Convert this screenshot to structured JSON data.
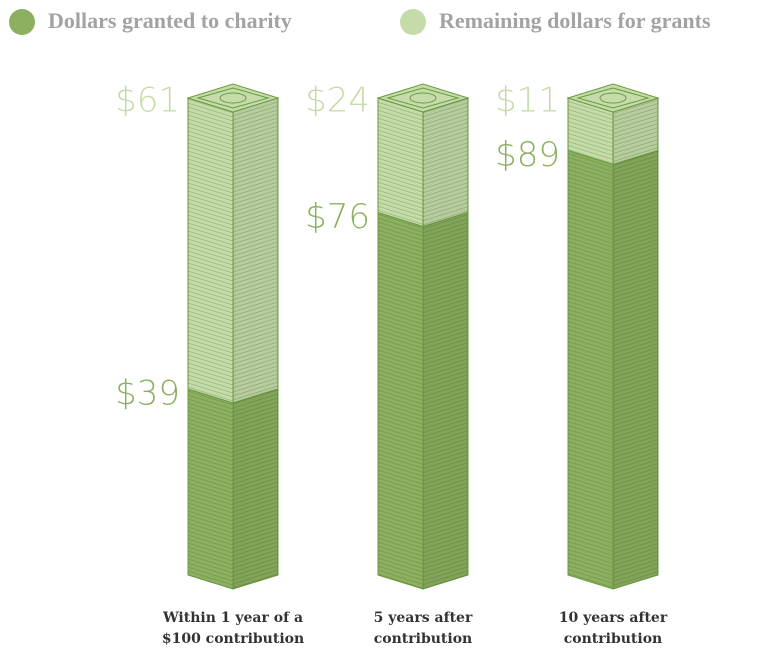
{
  "chart_data": {
    "type": "stacked-bar",
    "categories": [
      "Within 1 year of a $100 contribution",
      "5 years after contribution",
      "10 years after contribution"
    ],
    "series": [
      {
        "name": "Dollars granted to charity",
        "color": "#8cb060",
        "values": [
          39,
          76,
          89
        ],
        "value_labels": [
          "$39",
          "$76",
          "$89"
        ]
      },
      {
        "name": "Remaining dollars for grants",
        "color": "#c5dcaa",
        "values": [
          61,
          24,
          11
        ],
        "value_labels": [
          "$61",
          "$24",
          "$11"
        ]
      }
    ],
    "ylim": [
      0,
      100
    ]
  }
}
